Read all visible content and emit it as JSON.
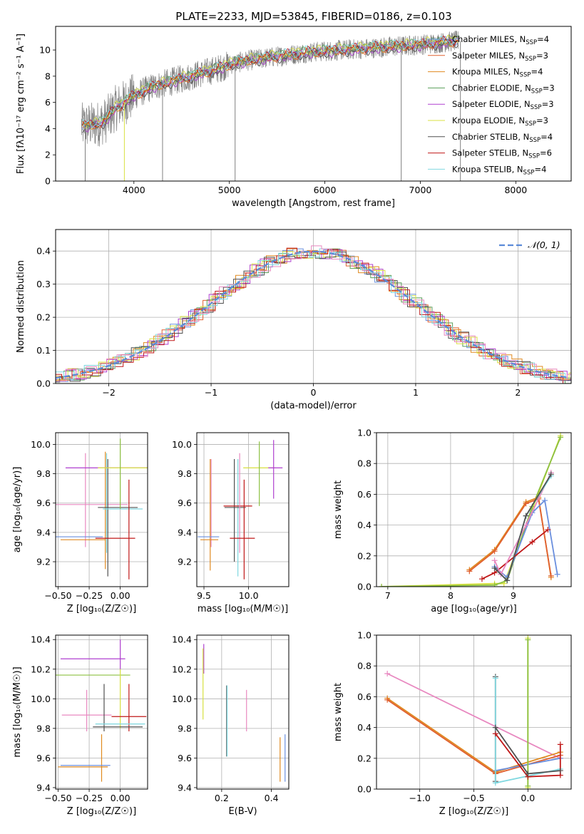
{
  "figure": {
    "title": "PLATE=2233, MJD=53845, FIBERID=0186, z=0.103"
  },
  "colors": {
    "chabrier_miles": "#6a8fde",
    "salpeter_miles": "#e06030",
    "kroupa_miles": "#e08a20",
    "chabrier_elodie": "#5a9e5a",
    "salpeter_elodie": "#b040d0",
    "kroupa_elodie": "#d8e040",
    "chabrier_stelib": "#505050",
    "salpeter_stelib": "#c01818",
    "kroupa_stelib": "#80d8e0",
    "pink": "#e888c0",
    "green": "#8cc040",
    "data_spectrum": "#808080",
    "gaussian": "#5b8ad8"
  },
  "chart_data": [
    {
      "id": "spectrum",
      "type": "line",
      "title": "PLATE=2233, MJD=53845, FIBERID=0186, z=0.103",
      "xlabel": "wavelength [Angstrom, rest frame]",
      "ylabel": "Flux [fλ10⁻¹⁷ erg cm⁻² s⁻¹ A⁻¹]",
      "xlim": [
        3180,
        8580
      ],
      "ylim": [
        0,
        11.8
      ],
      "xticks": [
        "4000",
        "5000",
        "6000",
        "7000",
        "8000"
      ],
      "yticks": [
        "0",
        "2",
        "4",
        "6",
        "8",
        "10"
      ],
      "grid": false,
      "legend_position": "upper-right",
      "legend": [
        {
          "label": "Chabrier MILES, N",
          "sub": "SSP",
          "tail": "=4",
          "color_key": "chabrier_miles"
        },
        {
          "label": "Salpeter MILES, N",
          "sub": "SSP",
          "tail": "=3",
          "color_key": "salpeter_miles"
        },
        {
          "label": "Kroupa MILES, N",
          "sub": "SSP",
          "tail": "=4",
          "color_key": "kroupa_miles"
        },
        {
          "label": "Chabrier ELODIE, N",
          "sub": "SSP",
          "tail": "=3",
          "color_key": "chabrier_elodie"
        },
        {
          "label": "Salpeter ELODIE, N",
          "sub": "SSP",
          "tail": "=3",
          "color_key": "salpeter_elodie"
        },
        {
          "label": "Kroupa ELODIE, N",
          "sub": "SSP",
          "tail": "=3",
          "color_key": "kroupa_elodie"
        },
        {
          "label": "Chabrier STELIB, N",
          "sub": "SSP",
          "tail": "=4",
          "color_key": "chabrier_stelib"
        },
        {
          "label": "Salpeter STELIB, N",
          "sub": "SSP",
          "tail": "=6",
          "color_key": "salpeter_stelib"
        },
        {
          "label": "Kroupa STELIB, N",
          "sub": "SSP",
          "tail": "=4",
          "color_key": "kroupa_stelib"
        }
      ],
      "continuum": {
        "x": [
          3450,
          3600,
          3700,
          3800,
          3900,
          4000,
          4200,
          4400,
          4600,
          4800,
          4900,
          5000,
          5200,
          5500,
          5800,
          6000,
          6200,
          6400,
          6600,
          6800,
          7000,
          7200,
          7400
        ],
        "y": [
          4.2,
          4.3,
          4.6,
          5.5,
          6.0,
          6.5,
          7.2,
          7.6,
          8.0,
          8.4,
          8.6,
          8.9,
          9.2,
          9.5,
          9.8,
          9.9,
          10.0,
          10.1,
          10.2,
          10.3,
          10.4,
          10.55,
          10.7
        ]
      },
      "models": [
        {
          "color_key": "chabrier_miles",
          "offset": 0.05
        },
        {
          "color_key": "salpeter_miles",
          "offset": -0.05
        },
        {
          "color_key": "kroupa_miles",
          "offset": 0.0
        },
        {
          "color_key": "chabrier_elodie",
          "offset": 0.1
        },
        {
          "color_key": "salpeter_elodie",
          "offset": -0.1
        },
        {
          "color_key": "kroupa_elodie",
          "offset": 0.15
        },
        {
          "color_key": "chabrier_stelib",
          "offset": -0.15
        },
        {
          "color_key": "salpeter_stelib",
          "offset": 0.08
        },
        {
          "color_key": "kroupa_stelib",
          "offset": 0.12
        }
      ]
    },
    {
      "id": "residuals",
      "type": "line",
      "xlabel": "(data-model)/error",
      "ylabel": "Normed distribution",
      "xlim": [
        -2.52,
        2.52
      ],
      "ylim": [
        0,
        0.465
      ],
      "xticks": [
        "−2",
        "−1",
        "0",
        "1",
        "2"
      ],
      "yticks": [
        "0.0",
        "0.1",
        "0.2",
        "0.3",
        "0.4"
      ],
      "grid": true,
      "legend_position": "upper-right",
      "legend": [
        {
          "label": "𝒩(0, 1)",
          "color_key": "gaussian",
          "style": "dashed"
        }
      ],
      "series_colors": [
        "chabrier_miles",
        "salpeter_miles",
        "kroupa_miles",
        "chabrier_elodie",
        "salpeter_elodie",
        "kroupa_elodie",
        "chabrier_stelib",
        "salpeter_stelib",
        "kroupa_stelib",
        "pink"
      ]
    },
    {
      "id": "z_age",
      "type": "scatter",
      "xlabel": "Z [log₁₀(Z/Z☉)]",
      "ylabel": "age  [log₁₀(age/yr)]",
      "xlim": [
        -0.52,
        0.22
      ],
      "ylim": [
        9.03,
        10.08
      ],
      "xticks": [
        "−0.50",
        "−0.25",
        "0.00"
      ],
      "yticks": [
        "9.2",
        "9.4",
        "9.6",
        "9.8",
        "10.0"
      ],
      "grid": true,
      "errorbars": [
        {
          "x": -0.36,
          "xerr": 0.42,
          "y": 9.59,
          "yerr": 0.0,
          "color_key": "pink"
        },
        {
          "x": -0.28,
          "xerr": 0.0,
          "y": 9.62,
          "yerr": 0.32,
          "color_key": "pink"
        },
        {
          "x": -0.34,
          "xerr": 0.2,
          "y": 9.37,
          "yerr": 0.0,
          "color_key": "chabrier_miles"
        },
        {
          "x": -0.3,
          "xerr": 0.18,
          "y": 9.35,
          "yerr": 0.0,
          "color_key": "kroupa_miles"
        },
        {
          "x": -0.12,
          "xerr": 0.0,
          "y": 9.55,
          "yerr": 0.4,
          "color_key": "kroupa_miles"
        },
        {
          "x": -0.11,
          "xerr": 0.0,
          "y": 9.6,
          "yerr": 0.34,
          "color_key": "kroupa_stelib"
        },
        {
          "x": -0.1,
          "xerr": 0.0,
          "y": 9.5,
          "yerr": 0.4,
          "color_key": "chabrier_stelib"
        },
        {
          "x": -0.02,
          "xerr": 0.16,
          "y": 9.57,
          "yerr": 0.0,
          "color_key": "chabrier_stelib"
        },
        {
          "x": 0.02,
          "xerr": 0.16,
          "y": 9.56,
          "yerr": 0.0,
          "color_key": "kroupa_stelib"
        },
        {
          "x": -0.02,
          "xerr": 0.42,
          "y": 9.84,
          "yerr": 0.0,
          "color_key": "salpeter_elodie"
        },
        {
          "x": 0.02,
          "xerr": 0.2,
          "y": 9.84,
          "yerr": 0.0,
          "color_key": "kroupa_elodie"
        },
        {
          "x": 0.0,
          "xerr": 0.0,
          "y": 9.8,
          "yerr": 0.24,
          "color_key": "green"
        },
        {
          "x": 0.07,
          "xerr": 0.0,
          "y": 9.42,
          "yerr": 0.34,
          "color_key": "salpeter_stelib"
        },
        {
          "x": -0.04,
          "xerr": 0.16,
          "y": 9.36,
          "yerr": 0.0,
          "color_key": "salpeter_stelib"
        }
      ]
    },
    {
      "id": "mass_age",
      "type": "scatter",
      "xlabel": "mass [log₁₀(M/M☉)]",
      "ylabel": "",
      "xlim": [
        9.42,
        10.45
      ],
      "ylim": [
        9.03,
        10.08
      ],
      "xticks": [
        "9.5",
        "10.0"
      ],
      "yticks": [
        "9.2",
        "9.4",
        "9.6",
        "9.8",
        "10.0"
      ],
      "grid": true,
      "errorbars": [
        {
          "x": 9.58,
          "xerr": 0.0,
          "y": 9.6,
          "yerr": 0.3,
          "color_key": "pink"
        },
        {
          "x": 9.57,
          "xerr": 0.0,
          "y": 9.52,
          "yerr": 0.38,
          "color_key": "kroupa_miles"
        },
        {
          "x": 9.55,
          "xerr": 0.12,
          "y": 9.37,
          "yerr": 0.0,
          "color_key": "chabrier_miles"
        },
        {
          "x": 9.56,
          "xerr": 0.1,
          "y": 9.35,
          "yerr": 0.0,
          "color_key": "kroupa_miles"
        },
        {
          "x": 9.84,
          "xerr": 0.0,
          "y": 9.55,
          "yerr": 0.35,
          "color_key": "chabrier_stelib"
        },
        {
          "x": 9.88,
          "xerr": 0.0,
          "y": 9.5,
          "yerr": 0.4,
          "color_key": "kroupa_stelib"
        },
        {
          "x": 9.85,
          "xerr": 0.12,
          "y": 9.57,
          "yerr": 0.0,
          "color_key": "chabrier_stelib"
        },
        {
          "x": 9.88,
          "xerr": 0.16,
          "y": 9.58,
          "yerr": 0.0,
          "color_key": "salpeter_stelib"
        },
        {
          "x": 9.9,
          "xerr": 0.0,
          "y": 9.6,
          "yerr": 0.34,
          "color_key": "pink"
        },
        {
          "x": 9.95,
          "xerr": 0.0,
          "y": 9.42,
          "yerr": 0.34,
          "color_key": "salpeter_stelib"
        },
        {
          "x": 9.93,
          "xerr": 0.14,
          "y": 9.36,
          "yerr": 0.0,
          "color_key": "salpeter_stelib"
        },
        {
          "x": 10.12,
          "xerr": 0.18,
          "y": 9.84,
          "yerr": 0.0,
          "color_key": "kroupa_elodie"
        },
        {
          "x": 10.12,
          "xerr": 0.0,
          "y": 9.8,
          "yerr": 0.22,
          "color_key": "green"
        },
        {
          "x": 10.28,
          "xerr": 0.0,
          "y": 9.83,
          "yerr": 0.2,
          "color_key": "salpeter_elodie"
        },
        {
          "x": 10.3,
          "xerr": 0.08,
          "y": 9.84,
          "yerr": 0.0,
          "color_key": "salpeter_elodie"
        }
      ]
    },
    {
      "id": "age_weight",
      "type": "line",
      "xlabel": "age  [log₁₀(age/yr)]",
      "ylabel": "mass weight",
      "xlim": [
        6.82,
        9.92
      ],
      "ylim": [
        0,
        1.0
      ],
      "xticks": [
        "7",
        "8",
        "9"
      ],
      "yticks": [
        "0.0",
        "0.2",
        "0.4",
        "0.6",
        "0.8",
        "1.0"
      ],
      "grid": true,
      "series": [
        {
          "color_key": "kroupa_elodie",
          "x": [
            6.9,
            8.7,
            8.85,
            9.3,
            9.75
          ],
          "y": [
            0.0,
            0.02,
            0.02,
            0.5,
            0.98
          ]
        },
        {
          "color_key": "green",
          "x": [
            6.9,
            8.7,
            8.9,
            9.3,
            9.75
          ],
          "y": [
            0.0,
            0.01,
            0.04,
            0.52,
            0.97
          ]
        },
        {
          "color_key": "kroupa_miles",
          "x": [
            8.3,
            8.7,
            9.2,
            9.4,
            9.6
          ],
          "y": [
            0.11,
            0.24,
            0.55,
            0.58,
            0.06
          ]
        },
        {
          "color_key": "salpeter_miles",
          "x": [
            8.3,
            8.7,
            9.2,
            9.4,
            9.6
          ],
          "y": [
            0.1,
            0.23,
            0.54,
            0.57,
            0.07
          ]
        },
        {
          "color_key": "chabrier_miles",
          "x": [
            8.7,
            8.9,
            9.3,
            9.5,
            9.7
          ],
          "y": [
            0.13,
            0.06,
            0.48,
            0.56,
            0.08
          ]
        },
        {
          "color_key": "salpeter_stelib",
          "x": [
            8.5,
            8.7,
            9.3,
            9.55
          ],
          "y": [
            0.05,
            0.09,
            0.29,
            0.37
          ]
        },
        {
          "color_key": "pink",
          "x": [
            8.7,
            8.8,
            9.2,
            9.6
          ],
          "y": [
            0.17,
            0.08,
            0.4,
            0.74
          ]
        },
        {
          "color_key": "kroupa_stelib",
          "x": [
            8.7,
            8.9,
            9.2,
            9.6
          ],
          "y": [
            0.12,
            0.04,
            0.46,
            0.72
          ]
        },
        {
          "color_key": "chabrier_stelib",
          "x": [
            8.7,
            8.9,
            9.2,
            9.6
          ],
          "y": [
            0.12,
            0.04,
            0.46,
            0.73
          ]
        }
      ]
    },
    {
      "id": "z_mass",
      "type": "scatter",
      "xlabel": "Z [log₁₀(Z/Z☉)]",
      "ylabel": "mass [log₁₀(M/M☉)]",
      "xlim": [
        -0.52,
        0.22
      ],
      "ylim": [
        9.39,
        10.43
      ],
      "xticks": [
        "−0.50",
        "−0.25",
        "0.00"
      ],
      "yticks": [
        "9.4",
        "9.6",
        "9.8",
        "10.0",
        "10.2",
        "10.4"
      ],
      "grid": true,
      "errorbars": [
        {
          "x": -0.22,
          "xerr": 0.26,
          "y": 10.27,
          "yerr": 0.0,
          "color_key": "salpeter_elodie"
        },
        {
          "x": -0.22,
          "xerr": 0.3,
          "y": 10.16,
          "yerr": 0.0,
          "color_key": "green"
        },
        {
          "x": 0.0,
          "xerr": 0.0,
          "y": 10.3,
          "yerr": 0.1,
          "color_key": "salpeter_elodie"
        },
        {
          "x": 0.0,
          "xerr": 0.0,
          "y": 10.0,
          "yerr": 0.2,
          "color_key": "kroupa_elodie"
        },
        {
          "x": -0.27,
          "xerr": 0.2,
          "y": 9.89,
          "yerr": 0.0,
          "color_key": "pink"
        },
        {
          "x": -0.27,
          "xerr": 0.0,
          "y": 9.92,
          "yerr": 0.14,
          "color_key": "pink"
        },
        {
          "x": -0.13,
          "xerr": 0.0,
          "y": 9.94,
          "yerr": 0.16,
          "color_key": "chabrier_stelib"
        },
        {
          "x": 0.07,
          "xerr": 0.14,
          "y": 9.88,
          "yerr": 0.0,
          "color_key": "salpeter_stelib"
        },
        {
          "x": 0.07,
          "xerr": 0.0,
          "y": 9.94,
          "yerr": 0.16,
          "color_key": "salpeter_stelib"
        },
        {
          "x": 0.0,
          "xerr": 0.2,
          "y": 9.83,
          "yerr": 0.0,
          "color_key": "kroupa_stelib"
        },
        {
          "x": -0.02,
          "xerr": 0.2,
          "y": 9.81,
          "yerr": 0.0,
          "color_key": "chabrier_stelib"
        },
        {
          "x": -0.15,
          "xerr": 0.0,
          "y": 9.6,
          "yerr": 0.16,
          "color_key": "kroupa_miles"
        },
        {
          "x": -0.28,
          "xerr": 0.2,
          "y": 9.55,
          "yerr": 0.0,
          "color_key": "chabrier_miles"
        },
        {
          "x": -0.3,
          "xerr": 0.2,
          "y": 9.54,
          "yerr": 0.0,
          "color_key": "kroupa_miles"
        }
      ]
    },
    {
      "id": "ebv_mass",
      "type": "scatter",
      "xlabel": "E(B-V)",
      "ylabel": "",
      "xlim": [
        0.1,
        0.47
      ],
      "ylim": [
        9.39,
        10.43
      ],
      "xticks": [
        "0.2",
        "0.4"
      ],
      "yticks": [
        "9.4",
        "9.6",
        "9.8",
        "10.0",
        "10.2",
        "10.4"
      ],
      "grid": true,
      "errorbars": [
        {
          "x": 0.128,
          "xerr": 0.0,
          "y": 10.27,
          "yerr": 0.1,
          "color_key": "salpeter_elodie"
        },
        {
          "x": 0.125,
          "xerr": 0.0,
          "y": 10.1,
          "yerr": 0.24,
          "color_key": "kroupa_elodie"
        },
        {
          "x": 0.22,
          "xerr": 0.0,
          "y": 9.85,
          "yerr": 0.24,
          "color_key": "chabrier_stelib"
        },
        {
          "x": 0.222,
          "xerr": 0.0,
          "y": 9.85,
          "yerr": 0.24,
          "color_key": "kroupa_stelib"
        },
        {
          "x": 0.3,
          "xerr": 0.0,
          "y": 9.92,
          "yerr": 0.14,
          "color_key": "pink"
        },
        {
          "x": 0.435,
          "xerr": 0.0,
          "y": 9.59,
          "yerr": 0.15,
          "color_key": "kroupa_miles"
        },
        {
          "x": 0.455,
          "xerr": 0.0,
          "y": 9.6,
          "yerr": 0.16,
          "color_key": "chabrier_miles"
        }
      ]
    },
    {
      "id": "z_weight",
      "type": "line",
      "xlabel": "Z [log₁₀(Z/Z☉)]",
      "ylabel": "mass weight",
      "xlim": [
        -1.4,
        0.4
      ],
      "ylim": [
        0,
        1.0
      ],
      "xticks": [
        "−1.0",
        "−0.5",
        "0.0"
      ],
      "yticks": [
        "0.0",
        "0.2",
        "0.4",
        "0.6",
        "0.8",
        "1.0"
      ],
      "grid": true,
      "series": [
        {
          "color_key": "pink",
          "x": [
            -1.3,
            0.3
          ],
          "y": [
            0.75,
            0.2
          ]
        },
        {
          "color_key": "kroupa_miles",
          "x": [
            -1.3,
            -0.3,
            0.3
          ],
          "y": [
            0.59,
            0.11,
            0.24
          ]
        },
        {
          "color_key": "salpeter_miles",
          "x": [
            -1.3,
            -0.3,
            0.3
          ],
          "y": [
            0.58,
            0.1,
            0.22
          ]
        },
        {
          "color_key": "chabrier_miles",
          "x": [
            -0.3,
            0.3
          ],
          "y": [
            0.12,
            0.2
          ]
        },
        {
          "color_key": "kroupa_elodie",
          "x": [
            0.0,
            0.0
          ],
          "y": [
            0.98,
            0.01
          ]
        },
        {
          "color_key": "green",
          "x": [
            0.0,
            0.0
          ],
          "y": [
            0.97,
            0.02
          ]
        },
        {
          "color_key": "chabrier_stelib",
          "x": [
            -0.3,
            -0.3
          ],
          "y": [
            0.73,
            0.05
          ]
        },
        {
          "color_key": "kroupa_stelib",
          "x": [
            -0.3,
            -0.3,
            0.3
          ],
          "y": [
            0.72,
            0.04,
            0.13
          ]
        },
        {
          "color_key": "salpeter_stelib",
          "x": [
            -0.3,
            0.0,
            0.3,
            0.3
          ],
          "y": [
            0.36,
            0.08,
            0.09,
            0.29
          ]
        },
        {
          "color_key": "chabrier_stelib",
          "x": [
            -0.3,
            0.0,
            0.3
          ],
          "y": [
            0.4,
            0.1,
            0.12
          ]
        }
      ]
    }
  ]
}
